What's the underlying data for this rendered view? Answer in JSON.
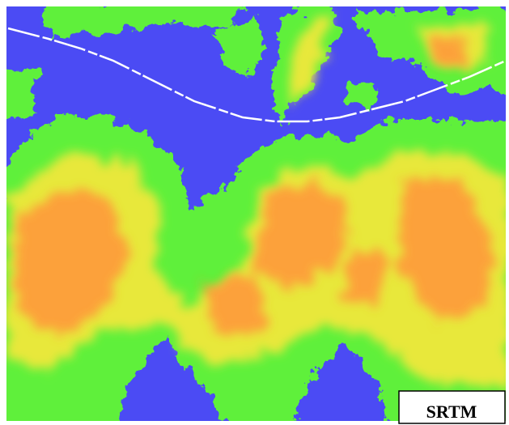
{
  "map_label": "SRTM"
}
